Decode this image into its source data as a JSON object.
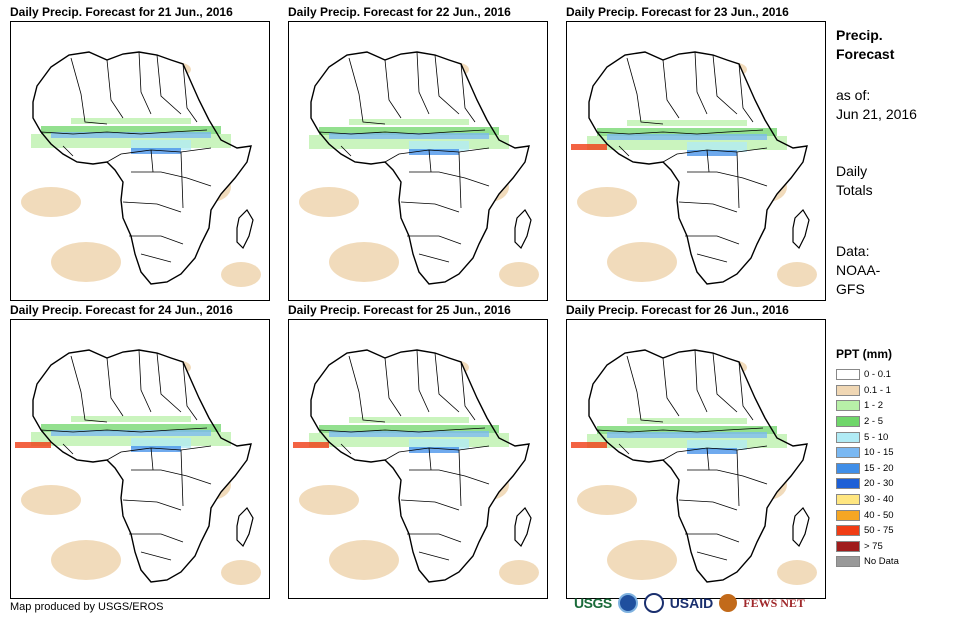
{
  "panels": [
    {
      "title": "Daily Precip. Forecast for 21 Jun., 2016"
    },
    {
      "title": "Daily Precip. Forecast for 22 Jun., 2016"
    },
    {
      "title": "Daily Precip. Forecast for 23 Jun., 2016"
    },
    {
      "title": "Daily Precip. Forecast for 24 Jun., 2016"
    },
    {
      "title": "Daily Precip. Forecast for 25 Jun., 2016"
    },
    {
      "title": "Daily Precip. Forecast for 26 Jun., 2016"
    }
  ],
  "side": {
    "title_line1": "Precip.",
    "title_line2": "Forecast",
    "asof_label": "as of:",
    "asof_date": "Jun 21, 2016",
    "totals_line1": "Daily",
    "totals_line2": "Totals",
    "data_line1": "Data:",
    "data_line2": "NOAA-",
    "data_line3": "GFS"
  },
  "legend": {
    "title": "PPT (mm)",
    "items": [
      {
        "label": "0 - 0.1",
        "color": "#ffffff"
      },
      {
        "label": "0.1 - 1",
        "color": "#f0d7b4"
      },
      {
        "label": "1 - 2",
        "color": "#b8f0a8"
      },
      {
        "label": "2 - 5",
        "color": "#6fd66a"
      },
      {
        "label": "5 - 10",
        "color": "#b0ebf5"
      },
      {
        "label": "10 - 15",
        "color": "#7ab8f2"
      },
      {
        "label": "15 - 20",
        "color": "#3f8ee8"
      },
      {
        "label": "20 - 30",
        "color": "#1d5fd6"
      },
      {
        "label": "30 - 40",
        "color": "#ffe680"
      },
      {
        "label": "40 - 50",
        "color": "#f5a623"
      },
      {
        "label": "50 - 75",
        "color": "#f03c14"
      },
      {
        "label": "> 75",
        "color": "#a01c1c"
      },
      {
        "label": "No Data",
        "color": "#999999"
      }
    ]
  },
  "footer": {
    "credit": "Map produced by USGS/EROS"
  },
  "logos": {
    "usgs": "USGS",
    "usaid": "USAID",
    "fews": "FEWS NET"
  }
}
